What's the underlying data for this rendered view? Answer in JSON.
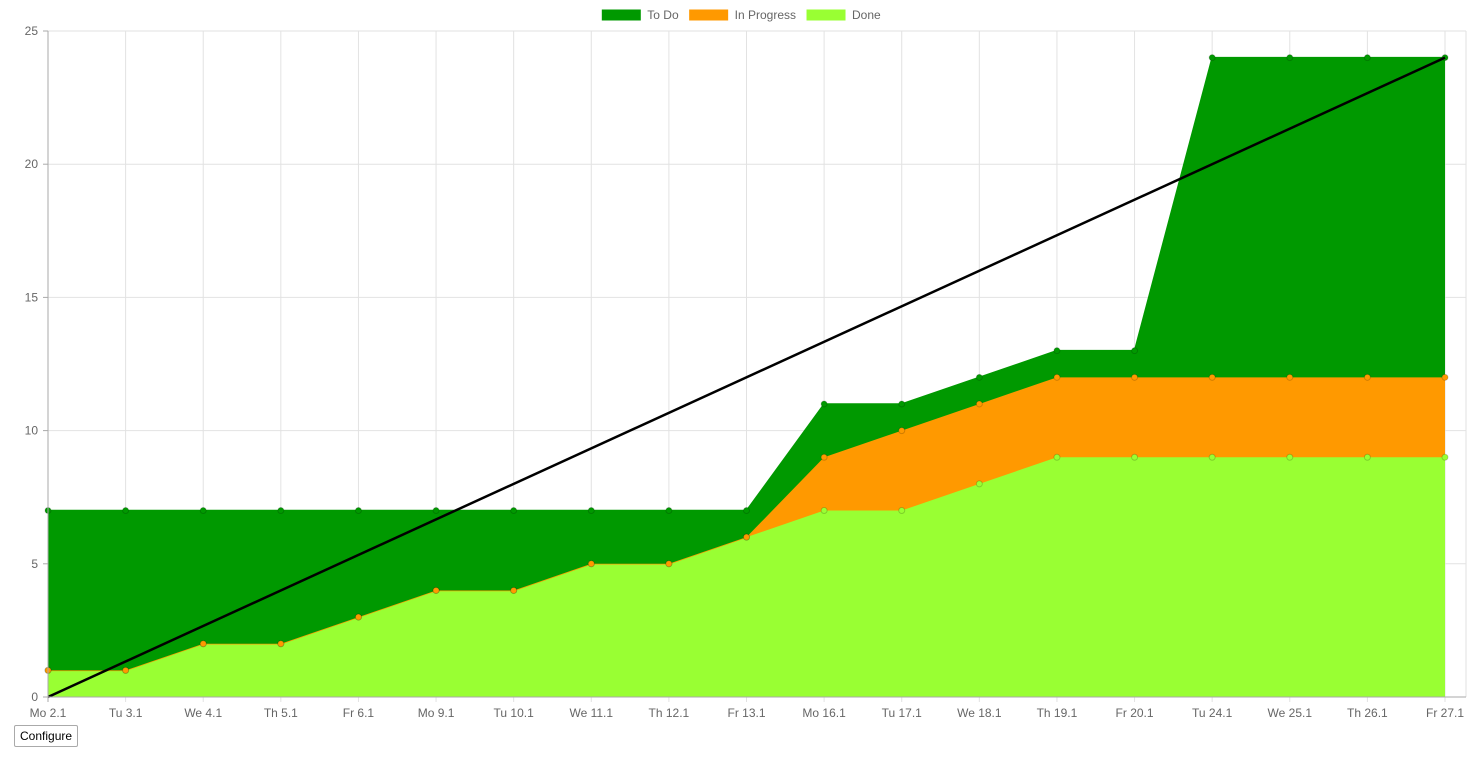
{
  "chart_data": {
    "type": "area",
    "stacked": true,
    "categories": [
      "Mo 2.1",
      "Tu 3.1",
      "We 4.1",
      "Th 5.1",
      "Fr 6.1",
      "Mo 9.1",
      "Tu 10.1",
      "We 11.1",
      "Th 12.1",
      "Fr 13.1",
      "Mo 16.1",
      "Tu 17.1",
      "We 18.1",
      "Th 19.1",
      "Fr 20.1",
      "Tu 24.1",
      "We 25.1",
      "Th 26.1",
      "Fr 27.1"
    ],
    "series": [
      {
        "name": "Done",
        "color": "#99ff33",
        "values": [
          1,
          1,
          2,
          2,
          3,
          4,
          4,
          5,
          5,
          6,
          7,
          7,
          8,
          9,
          9,
          9,
          9,
          9,
          9
        ]
      },
      {
        "name": "In Progress",
        "color": "#ff9900",
        "values": [
          0,
          0,
          0,
          0,
          0,
          0,
          0,
          0,
          0,
          0,
          2,
          3,
          3,
          3,
          3,
          3,
          3,
          3,
          3
        ]
      },
      {
        "name": "To Do",
        "color": "#009900",
        "values": [
          6,
          6,
          5,
          5,
          4,
          3,
          3,
          2,
          2,
          1,
          2,
          1,
          1,
          1,
          1,
          12,
          12,
          12,
          12
        ]
      }
    ],
    "ideal_line": {
      "color": "#000000",
      "start": 0,
      "end": 24
    },
    "legend_order": [
      "To Do",
      "In Progress",
      "Done"
    ],
    "legend_position": "top-center",
    "ylim": [
      0,
      25
    ],
    "yticks": [
      "0",
      "5",
      "10",
      "15",
      "20",
      "25"
    ],
    "grid": true
  },
  "controls": {
    "configure_label": "Configure"
  }
}
